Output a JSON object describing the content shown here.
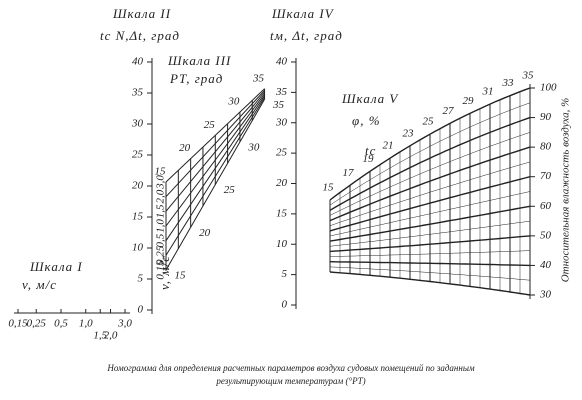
{
  "scale_1": {
    "title": "Шкала I",
    "label": "v, м/с",
    "ticks": [
      {
        "value": 0.15,
        "label": "0,15"
      },
      {
        "value": 0.25,
        "label": "0,25"
      },
      {
        "value": 0.5,
        "label": "0,5"
      },
      {
        "value": 1.0,
        "label": "1,0"
      },
      {
        "value": 1.5,
        "label": "1,5"
      },
      {
        "value": 2.0,
        "label": "2,0"
      },
      {
        "value": 3.0,
        "label": "3,0"
      }
    ],
    "log_scale": true
  },
  "scale_2": {
    "title": "Шкала II",
    "label": "tс N,Δt, град",
    "ticks": [
      0,
      5,
      10,
      15,
      20,
      25,
      30,
      35,
      40
    ]
  },
  "scale_3": {
    "title": "Шкала III",
    "label": "PT, град",
    "pt_ticks": [
      15,
      20,
      25,
      30,
      35
    ],
    "v_label": "v, м/с",
    "v_ticks": [
      {
        "value": 3.0,
        "label": "3,0"
      },
      {
        "value": 2.0,
        "label": "2,0"
      },
      {
        "value": 1.5,
        "label": "1,5"
      },
      {
        "value": 1.0,
        "label": "1,0"
      },
      {
        "value": 0.5,
        "label": "0,5"
      },
      {
        "value": 0.25,
        "label": "0,25"
      },
      {
        "value": 0.15,
        "label": "0,15"
      }
    ]
  },
  "scale_4": {
    "title": "Шкала IV",
    "label": "tм, Δt, град",
    "ticks": [
      0,
      5,
      10,
      15,
      20,
      25,
      30,
      35,
      40
    ]
  },
  "scale_5": {
    "title": "Шкала V",
    "label": "φ, %",
    "t_label": "tс",
    "t_ticks": [
      15,
      17,
      19,
      21,
      23,
      25,
      27,
      29,
      31,
      33,
      35
    ],
    "phi_ticks": [
      30,
      40,
      50,
      60,
      70,
      80,
      90,
      100
    ],
    "axis_title": "Относительная влажность воздуха, %"
  },
  "caption": [
    "Номограмма для определения расчетных параметров воздуха судовых помещений по заданным",
    "результирующим температурам (°PT)"
  ]
}
